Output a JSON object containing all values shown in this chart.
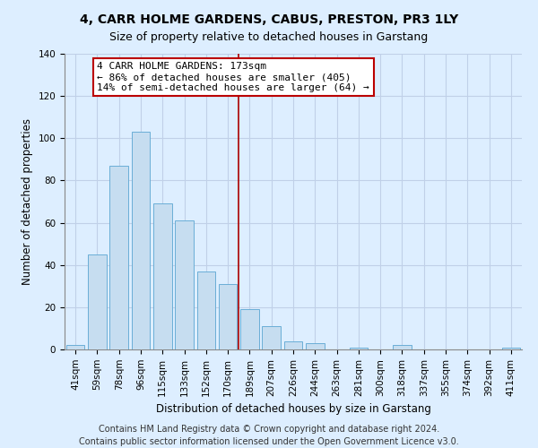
{
  "title": "4, CARR HOLME GARDENS, CABUS, PRESTON, PR3 1LY",
  "subtitle": "Size of property relative to detached houses in Garstang",
  "xlabel": "Distribution of detached houses by size in Garstang",
  "ylabel": "Number of detached properties",
  "categories": [
    "41sqm",
    "59sqm",
    "78sqm",
    "96sqm",
    "115sqm",
    "133sqm",
    "152sqm",
    "170sqm",
    "189sqm",
    "207sqm",
    "226sqm",
    "244sqm",
    "263sqm",
    "281sqm",
    "300sqm",
    "318sqm",
    "337sqm",
    "355sqm",
    "374sqm",
    "392sqm",
    "411sqm"
  ],
  "values": [
    2,
    45,
    87,
    103,
    69,
    61,
    37,
    31,
    19,
    11,
    4,
    3,
    0,
    1,
    0,
    2,
    0,
    0,
    0,
    0,
    1
  ],
  "bar_color": "#c6ddf0",
  "bar_edge_color": "#6aaed6",
  "vline_x_index": 7.5,
  "vline_color": "#aa0000",
  "annotation_line1": "4 CARR HOLME GARDENS: 173sqm",
  "annotation_line2": "← 86% of detached houses are smaller (405)",
  "annotation_line3": "14% of semi-detached houses are larger (64) →",
  "annotation_box_color": "#ffffff",
  "annotation_box_edge_color": "#bb0000",
  "ylim": [
    0,
    140
  ],
  "yticks": [
    0,
    20,
    40,
    60,
    80,
    100,
    120,
    140
  ],
  "footnote": "Contains HM Land Registry data © Crown copyright and database right 2024.\nContains public sector information licensed under the Open Government Licence v3.0.",
  "background_color": "#ddeeff",
  "plot_bg_color": "#ddeeff",
  "grid_color": "#c0d0e8",
  "title_fontsize": 10,
  "xlabel_fontsize": 8.5,
  "ylabel_fontsize": 8.5,
  "tick_fontsize": 7.5,
  "footnote_fontsize": 7,
  "annot_fontsize": 8
}
